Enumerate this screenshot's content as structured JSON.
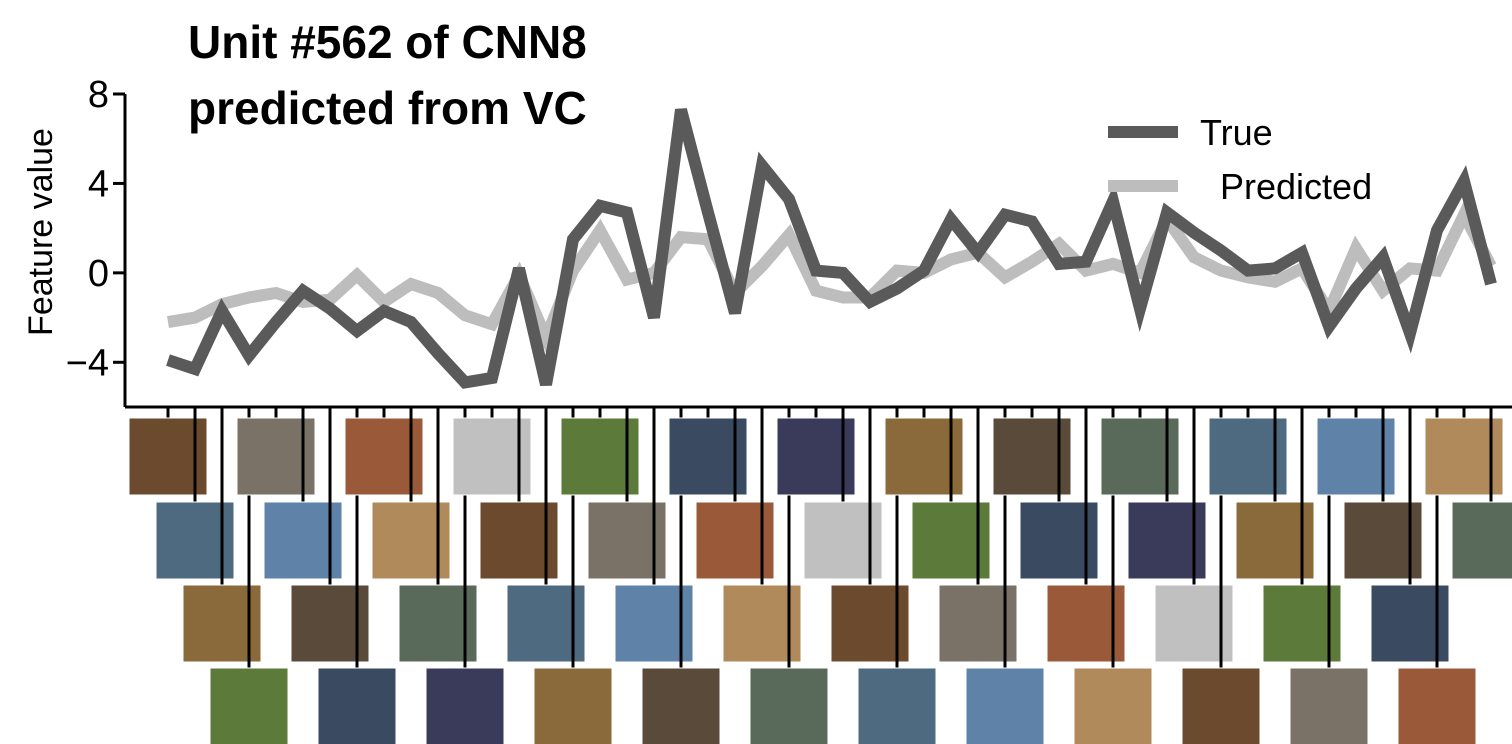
{
  "chart_data": {
    "type": "line",
    "title": [
      "Unit #562 of CNN8",
      "predicted from VC"
    ],
    "y_label": "Feature value",
    "categories": [
      null,
      null,
      null,
      null,
      null,
      null,
      null,
      null,
      null,
      null,
      null,
      null,
      null,
      null,
      null,
      null,
      null,
      null,
      null,
      null,
      null,
      null,
      null,
      null,
      null,
      null,
      null,
      null,
      null,
      null,
      null,
      null,
      null,
      null,
      null,
      null,
      null,
      null,
      null,
      null,
      null,
      null,
      null,
      null,
      null,
      null,
      null,
      null,
      null,
      null
    ],
    "series": [
      {
        "name": "True",
        "color": "#5a5a5a",
        "values": [
          -3.9,
          -4.3,
          -1.7,
          -3.7,
          -2.2,
          -0.8,
          -1.6,
          -2.6,
          -1.7,
          -2.2,
          -3.6,
          -4.9,
          -4.7,
          0.2,
          -5.0,
          1.5,
          3.0,
          2.7,
          -2.0,
          7.3,
          2.7,
          -1.8,
          4.8,
          3.3,
          0.1,
          0.0,
          -1.3,
          -0.7,
          0.1,
          2.4,
          0.9,
          2.6,
          2.3,
          0.4,
          0.5,
          3.2,
          -1.6,
          2.7,
          1.8,
          1.0,
          0.1,
          0.2,
          0.9,
          -2.4,
          -0.7,
          0.7,
          -2.7,
          1.9,
          4.1,
          -0.5
        ]
      },
      {
        "name": "Predicted",
        "color": "#bdbdbd",
        "values": [
          -2.2,
          -2.0,
          -1.4,
          -1.1,
          -0.9,
          -1.3,
          -1.2,
          -0.1,
          -1.3,
          -0.5,
          -0.9,
          -1.9,
          -2.3,
          -0.1,
          -2.9,
          0.1,
          1.9,
          -0.3,
          0.0,
          1.6,
          1.5,
          -0.9,
          0.3,
          1.7,
          -0.8,
          -1.1,
          -1.1,
          0.1,
          0.0,
          0.6,
          0.9,
          -0.2,
          0.5,
          1.3,
          0.1,
          0.4,
          0.0,
          2.4,
          0.7,
          0.1,
          -0.2,
          -0.4,
          0.2,
          -1.7,
          1.1,
          -0.8,
          0.2,
          0.1,
          2.6,
          0.3
        ]
      }
    ],
    "ylim": [
      -6,
      8
    ],
    "yticks": [
      {
        "value": -4,
        "label": "−4"
      },
      0,
      4,
      8
    ],
    "legend": "upper right"
  }
}
